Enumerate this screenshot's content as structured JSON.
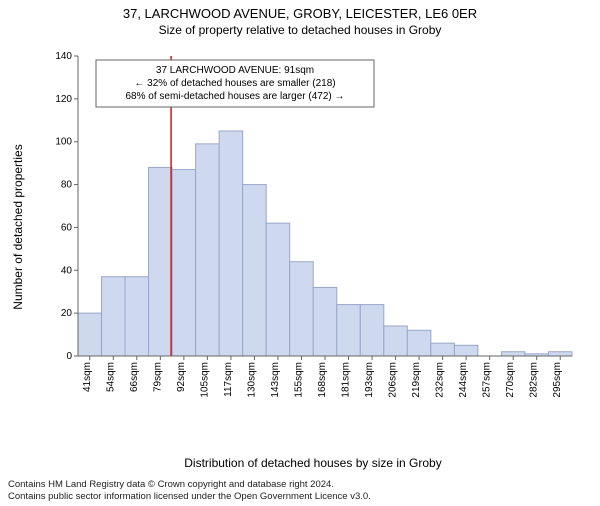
{
  "titles": {
    "main": "37, LARCHWOOD AVENUE, GROBY, LEICESTER, LE6 0ER",
    "sub": "Size of property relative to detached houses in Groby",
    "ylabel": "Number of detached properties",
    "xlabel": "Distribution of detached houses by size in Groby"
  },
  "chart": {
    "type": "histogram",
    "categories": [
      "41sqm",
      "54sqm",
      "66sqm",
      "79sqm",
      "92sqm",
      "105sqm",
      "117sqm",
      "130sqm",
      "143sqm",
      "155sqm",
      "168sqm",
      "181sqm",
      "193sqm",
      "206sqm",
      "219sqm",
      "232sqm",
      "244sqm",
      "257sqm",
      "270sqm",
      "282sqm",
      "295sqm"
    ],
    "values": [
      20,
      37,
      37,
      88,
      87,
      99,
      105,
      80,
      62,
      44,
      32,
      24,
      24,
      14,
      12,
      6,
      5,
      0,
      2,
      1,
      2
    ],
    "ylim": [
      0,
      140
    ],
    "ytick_step": 20,
    "bar_fill": "#ced8ef",
    "bar_stroke": "#9aa7c7",
    "axis_color": "#666666",
    "grid_color": "#666666",
    "background_color": "#ffffff",
    "marker_line_color": "#e02020",
    "marker_line_index": 4,
    "tick_fontsize": 10,
    "axis_label_fontsize": 12,
    "title_fontsize": 13
  },
  "annotation": {
    "lines": [
      "37 LARCHWOOD AVENUE: 91sqm",
      "← 32% of detached houses are smaller (218)",
      "68% of semi-detached houses are larger (472) →"
    ],
    "border_color": "#666666",
    "bg": "#ffffff",
    "fontsize": 10
  },
  "footer": {
    "line1": "Contains HM Land Registry data © Crown copyright and database right 2024.",
    "line2": "Contains public sector information licensed under the Open Government Licence v3.0."
  }
}
